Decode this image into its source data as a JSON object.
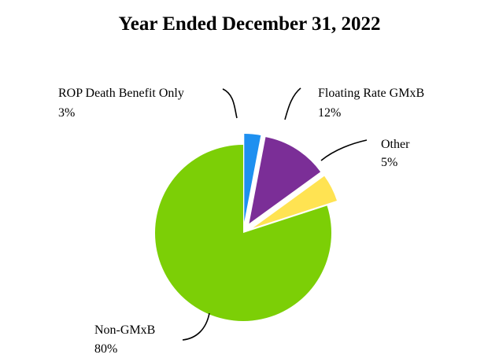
{
  "chart_data": {
    "type": "pie",
    "title": "Year Ended December 31, 2022",
    "slices": [
      {
        "name": "ROP Death Benefit Only",
        "value": 3,
        "label": "3%",
        "color": "#1E90F0",
        "exploded": true
      },
      {
        "name": "Floating Rate GMxB",
        "value": 12,
        "label": "12%",
        "color": "#7B2E97",
        "exploded": true
      },
      {
        "name": "Other",
        "value": 5,
        "label": "5%",
        "color": "#FFE352",
        "exploded": true
      },
      {
        "name": "Non-GMxB",
        "value": 80,
        "label": "80%",
        "color": "#7CCF06",
        "exploded": false
      }
    ],
    "start_angle_deg": 0,
    "direction": "clockwise",
    "legend": "none"
  }
}
